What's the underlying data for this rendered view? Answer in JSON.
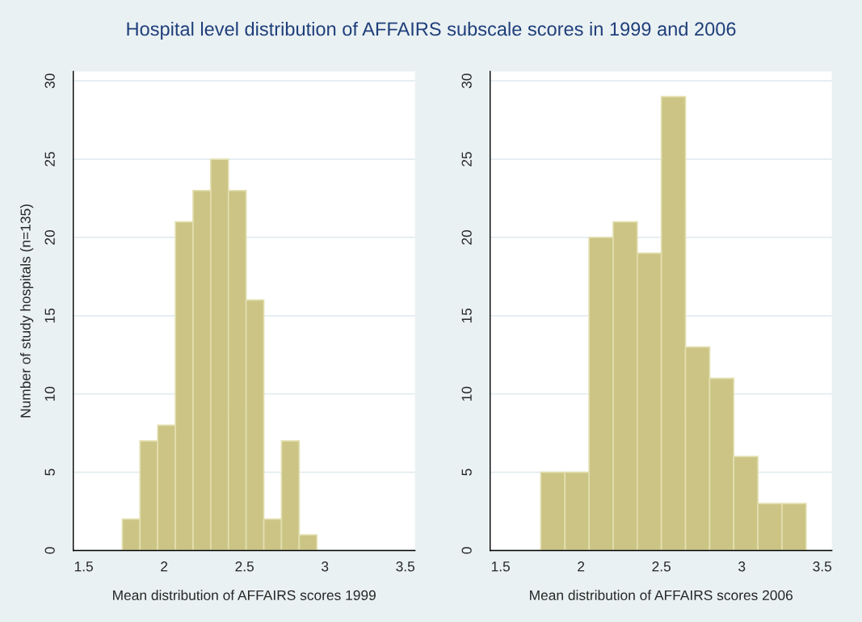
{
  "chart_data": [
    {
      "type": "histogram",
      "title": "Hospital level distribution of AFFAIRS subscale scores in 1999 and 2006",
      "xlabel": "Mean distribution of AFFAIRS scores 1999",
      "ylabel": "Number of study hospitals (n=135)",
      "bins": [
        1.74,
        1.85,
        1.96,
        2.07,
        2.18,
        2.29,
        2.4,
        2.51,
        2.62,
        2.73,
        2.84,
        2.95
      ],
      "values": [
        2,
        7,
        8,
        21,
        23,
        25,
        23,
        16,
        2,
        7,
        1
      ],
      "color": "#cbc485",
      "xlim": [
        1.435,
        3.56
      ],
      "xticks": [
        1.5,
        2,
        2.5,
        3,
        3.5
      ],
      "ylim": [
        0,
        30.6
      ],
      "yticks": [
        0,
        5,
        10,
        15,
        20,
        25,
        30
      ],
      "grid": "y"
    },
    {
      "type": "histogram",
      "xlabel": "Mean distribution of AFFAIRS scores 2006",
      "bins": [
        1.75,
        1.9,
        2.05,
        2.2,
        2.35,
        2.5,
        2.65,
        2.8,
        2.95,
        3.1,
        3.25,
        3.4
      ],
      "values": [
        5,
        5,
        20,
        21,
        19,
        29,
        13,
        11,
        6,
        3,
        3
      ],
      "color": "#cbc485",
      "xlim": [
        1.435,
        3.56
      ],
      "xticks": [
        1.5,
        2,
        2.5,
        3,
        3.5
      ],
      "ylim": [
        0,
        30.6
      ],
      "yticks": [
        0,
        5,
        10,
        15,
        20,
        25,
        30
      ],
      "grid": "y"
    }
  ]
}
